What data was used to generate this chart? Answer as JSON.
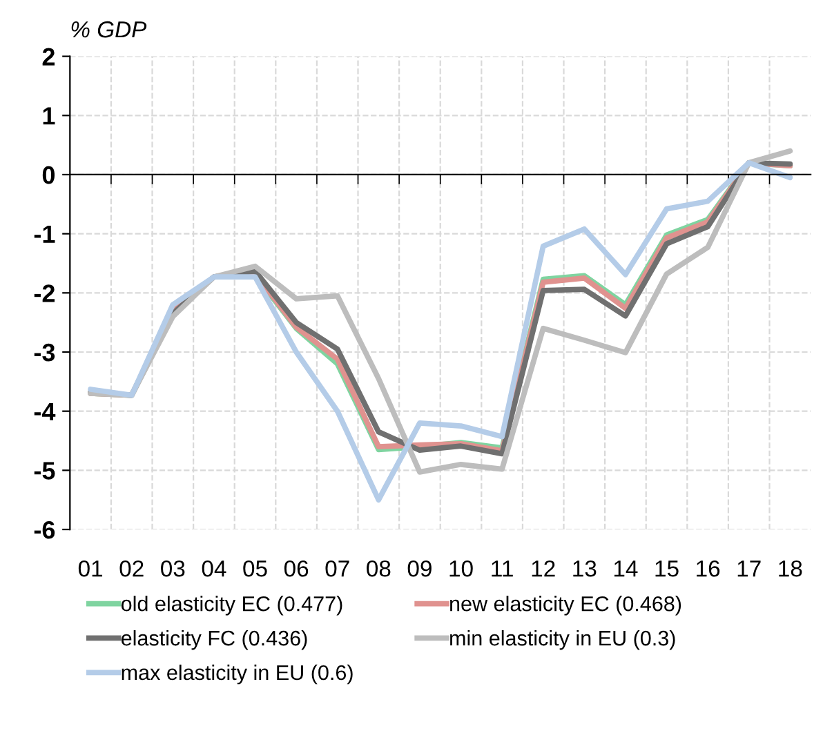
{
  "chart_data": {
    "type": "line",
    "ylabel": "% GDP",
    "categories": [
      "01",
      "02",
      "03",
      "04",
      "05",
      "06",
      "07",
      "08",
      "09",
      "10",
      "11",
      "12",
      "13",
      "14",
      "15",
      "16",
      "17",
      "18"
    ],
    "ylim": [
      -6,
      2
    ],
    "yticks": [
      -6,
      -5,
      -4,
      -3,
      -2,
      -1,
      0,
      1,
      2
    ],
    "grid": true,
    "legend": "bottom",
    "line_style": "solid",
    "marker": "none",
    "series": [
      {
        "name": "old elasticity EC (0.477)",
        "color": "#7fd4a0",
        "values": [
          -3.7,
          -3.73,
          -2.3,
          -1.73,
          -1.7,
          -2.6,
          -3.2,
          -4.65,
          -4.6,
          -4.53,
          -4.62,
          -1.77,
          -1.71,
          -2.2,
          -1.02,
          -0.76,
          0.2,
          0.15
        ]
      },
      {
        "name": "new elasticity EC (0.468)",
        "color": "#e0928f",
        "values": [
          -3.7,
          -3.73,
          -2.3,
          -1.73,
          -1.67,
          -2.58,
          -3.12,
          -4.6,
          -4.57,
          -4.55,
          -4.67,
          -1.82,
          -1.75,
          -2.26,
          -1.07,
          -0.8,
          0.2,
          0.15
        ]
      },
      {
        "name": "elasticity FC (0.436)",
        "color": "#707070",
        "values": [
          -3.68,
          -3.73,
          -2.35,
          -1.73,
          -1.63,
          -2.5,
          -2.95,
          -4.35,
          -4.66,
          -4.59,
          -4.72,
          -1.96,
          -1.94,
          -2.39,
          -1.17,
          -0.88,
          0.2,
          0.18
        ]
      },
      {
        "name": "min elasticity in EU (0.3)",
        "color": "#bdbdbd",
        "values": [
          -3.7,
          -3.73,
          -2.4,
          -1.73,
          -1.55,
          -2.1,
          -2.05,
          -3.45,
          -5.03,
          -4.9,
          -4.98,
          -2.6,
          -2.8,
          -3.01,
          -1.68,
          -1.23,
          0.2,
          0.4
        ]
      },
      {
        "name": "max elasticity in EU (0.6)",
        "color": "#b4cce8",
        "values": [
          -3.63,
          -3.73,
          -2.2,
          -1.73,
          -1.73,
          -3.0,
          -4.0,
          -5.5,
          -4.2,
          -4.25,
          -4.43,
          -1.21,
          -0.92,
          -1.69,
          -0.58,
          -0.45,
          0.2,
          -0.05
        ]
      }
    ]
  }
}
